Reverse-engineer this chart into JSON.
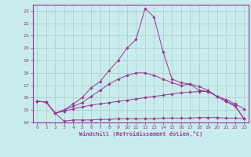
{
  "xlabel": "Windchill (Refroidissement éolien,°C)",
  "xlim": [
    -0.5,
    23.5
  ],
  "ylim": [
    14,
    23.5
  ],
  "xticks": [
    0,
    1,
    2,
    3,
    4,
    5,
    6,
    7,
    8,
    9,
    10,
    11,
    12,
    13,
    14,
    15,
    16,
    17,
    18,
    19,
    20,
    21,
    22,
    23
  ],
  "yticks": [
    14,
    15,
    16,
    17,
    18,
    19,
    20,
    21,
    22,
    23
  ],
  "bg_color": "#c8ecec",
  "grid_color": "#b0c8c8",
  "line_color": "#993399",
  "curves": [
    {
      "x": [
        0,
        1,
        2,
        3,
        4,
        5,
        6,
        7,
        8,
        9,
        10,
        11,
        12,
        13,
        14,
        15,
        16,
        17,
        18,
        19,
        20,
        21,
        22,
        23
      ],
      "y": [
        15.7,
        15.65,
        14.75,
        14.1,
        14.2,
        14.2,
        14.2,
        14.25,
        14.25,
        14.3,
        14.3,
        14.3,
        14.3,
        14.3,
        14.35,
        14.35,
        14.35,
        14.35,
        14.4,
        14.4,
        14.4,
        14.35,
        14.35,
        14.3
      ]
    },
    {
      "x": [
        0,
        1,
        2,
        3,
        4,
        5,
        6,
        7,
        8,
        9,
        10,
        11,
        12,
        13,
        14,
        15,
        16,
        17,
        18,
        19,
        20,
        21,
        22,
        23
      ],
      "y": [
        15.7,
        15.65,
        14.75,
        14.9,
        15.1,
        15.25,
        15.4,
        15.5,
        15.6,
        15.7,
        15.8,
        15.9,
        16.0,
        16.1,
        16.2,
        16.3,
        16.4,
        16.45,
        16.5,
        16.5,
        16.1,
        15.85,
        15.5,
        15.1
      ]
    },
    {
      "x": [
        0,
        1,
        2,
        3,
        4,
        5,
        6,
        7,
        8,
        9,
        10,
        11,
        12,
        13,
        14,
        15,
        16,
        17,
        18,
        19,
        20,
        21,
        22,
        23
      ],
      "y": [
        15.7,
        15.65,
        14.75,
        15.0,
        15.3,
        15.6,
        16.1,
        16.6,
        17.1,
        17.5,
        17.8,
        18.0,
        18.0,
        17.8,
        17.5,
        17.2,
        17.0,
        17.1,
        16.9,
        16.6,
        16.1,
        15.7,
        15.4,
        14.3
      ]
    },
    {
      "x": [
        0,
        1,
        2,
        3,
        4,
        5,
        6,
        7,
        8,
        9,
        10,
        11,
        12,
        13,
        14,
        15,
        16,
        17,
        18,
        19,
        20,
        21,
        22,
        23
      ],
      "y": [
        15.7,
        15.65,
        14.75,
        15.0,
        15.5,
        16.0,
        16.8,
        17.3,
        18.2,
        19.0,
        20.0,
        20.7,
        23.2,
        22.5,
        19.7,
        17.5,
        17.2,
        17.1,
        16.6,
        16.5,
        16.1,
        15.7,
        15.3,
        14.3
      ]
    }
  ]
}
